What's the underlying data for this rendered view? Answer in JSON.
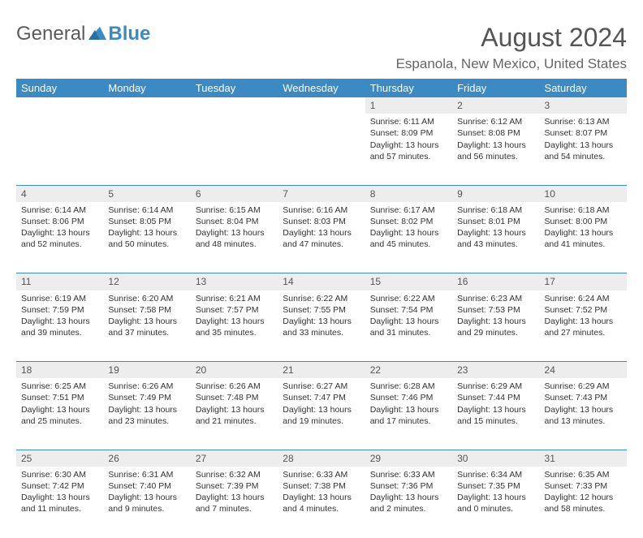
{
  "logo": {
    "text1": "General",
    "text2": "Blue"
  },
  "title": "August 2024",
  "location": "Espanola, New Mexico, United States",
  "colors": {
    "header_bg": "#3b8ac4",
    "header_fg": "#ffffff",
    "daynum_bg": "#ededed",
    "text": "#333333",
    "title_color": "#555555",
    "week_border": "#3b8ac4"
  },
  "day_headers": [
    "Sunday",
    "Monday",
    "Tuesday",
    "Wednesday",
    "Thursday",
    "Friday",
    "Saturday"
  ],
  "weeks": [
    [
      {
        "n": "",
        "body": ""
      },
      {
        "n": "",
        "body": ""
      },
      {
        "n": "",
        "body": ""
      },
      {
        "n": "",
        "body": ""
      },
      {
        "n": "1",
        "body": "Sunrise: 6:11 AM\nSunset: 8:09 PM\nDaylight: 13 hours and 57 minutes."
      },
      {
        "n": "2",
        "body": "Sunrise: 6:12 AM\nSunset: 8:08 PM\nDaylight: 13 hours and 56 minutes."
      },
      {
        "n": "3",
        "body": "Sunrise: 6:13 AM\nSunset: 8:07 PM\nDaylight: 13 hours and 54 minutes."
      }
    ],
    [
      {
        "n": "4",
        "body": "Sunrise: 6:14 AM\nSunset: 8:06 PM\nDaylight: 13 hours and 52 minutes."
      },
      {
        "n": "5",
        "body": "Sunrise: 6:14 AM\nSunset: 8:05 PM\nDaylight: 13 hours and 50 minutes."
      },
      {
        "n": "6",
        "body": "Sunrise: 6:15 AM\nSunset: 8:04 PM\nDaylight: 13 hours and 48 minutes."
      },
      {
        "n": "7",
        "body": "Sunrise: 6:16 AM\nSunset: 8:03 PM\nDaylight: 13 hours and 47 minutes."
      },
      {
        "n": "8",
        "body": "Sunrise: 6:17 AM\nSunset: 8:02 PM\nDaylight: 13 hours and 45 minutes."
      },
      {
        "n": "9",
        "body": "Sunrise: 6:18 AM\nSunset: 8:01 PM\nDaylight: 13 hours and 43 minutes."
      },
      {
        "n": "10",
        "body": "Sunrise: 6:18 AM\nSunset: 8:00 PM\nDaylight: 13 hours and 41 minutes."
      }
    ],
    [
      {
        "n": "11",
        "body": "Sunrise: 6:19 AM\nSunset: 7:59 PM\nDaylight: 13 hours and 39 minutes."
      },
      {
        "n": "12",
        "body": "Sunrise: 6:20 AM\nSunset: 7:58 PM\nDaylight: 13 hours and 37 minutes."
      },
      {
        "n": "13",
        "body": "Sunrise: 6:21 AM\nSunset: 7:57 PM\nDaylight: 13 hours and 35 minutes."
      },
      {
        "n": "14",
        "body": "Sunrise: 6:22 AM\nSunset: 7:55 PM\nDaylight: 13 hours and 33 minutes."
      },
      {
        "n": "15",
        "body": "Sunrise: 6:22 AM\nSunset: 7:54 PM\nDaylight: 13 hours and 31 minutes."
      },
      {
        "n": "16",
        "body": "Sunrise: 6:23 AM\nSunset: 7:53 PM\nDaylight: 13 hours and 29 minutes."
      },
      {
        "n": "17",
        "body": "Sunrise: 6:24 AM\nSunset: 7:52 PM\nDaylight: 13 hours and 27 minutes."
      }
    ],
    [
      {
        "n": "18",
        "body": "Sunrise: 6:25 AM\nSunset: 7:51 PM\nDaylight: 13 hours and 25 minutes."
      },
      {
        "n": "19",
        "body": "Sunrise: 6:26 AM\nSunset: 7:49 PM\nDaylight: 13 hours and 23 minutes."
      },
      {
        "n": "20",
        "body": "Sunrise: 6:26 AM\nSunset: 7:48 PM\nDaylight: 13 hours and 21 minutes."
      },
      {
        "n": "21",
        "body": "Sunrise: 6:27 AM\nSunset: 7:47 PM\nDaylight: 13 hours and 19 minutes."
      },
      {
        "n": "22",
        "body": "Sunrise: 6:28 AM\nSunset: 7:46 PM\nDaylight: 13 hours and 17 minutes."
      },
      {
        "n": "23",
        "body": "Sunrise: 6:29 AM\nSunset: 7:44 PM\nDaylight: 13 hours and 15 minutes."
      },
      {
        "n": "24",
        "body": "Sunrise: 6:29 AM\nSunset: 7:43 PM\nDaylight: 13 hours and 13 minutes."
      }
    ],
    [
      {
        "n": "25",
        "body": "Sunrise: 6:30 AM\nSunset: 7:42 PM\nDaylight: 13 hours and 11 minutes."
      },
      {
        "n": "26",
        "body": "Sunrise: 6:31 AM\nSunset: 7:40 PM\nDaylight: 13 hours and 9 minutes."
      },
      {
        "n": "27",
        "body": "Sunrise: 6:32 AM\nSunset: 7:39 PM\nDaylight: 13 hours and 7 minutes."
      },
      {
        "n": "28",
        "body": "Sunrise: 6:33 AM\nSunset: 7:38 PM\nDaylight: 13 hours and 4 minutes."
      },
      {
        "n": "29",
        "body": "Sunrise: 6:33 AM\nSunset: 7:36 PM\nDaylight: 13 hours and 2 minutes."
      },
      {
        "n": "30",
        "body": "Sunrise: 6:34 AM\nSunset: 7:35 PM\nDaylight: 13 hours and 0 minutes."
      },
      {
        "n": "31",
        "body": "Sunrise: 6:35 AM\nSunset: 7:33 PM\nDaylight: 12 hours and 58 minutes."
      }
    ]
  ]
}
